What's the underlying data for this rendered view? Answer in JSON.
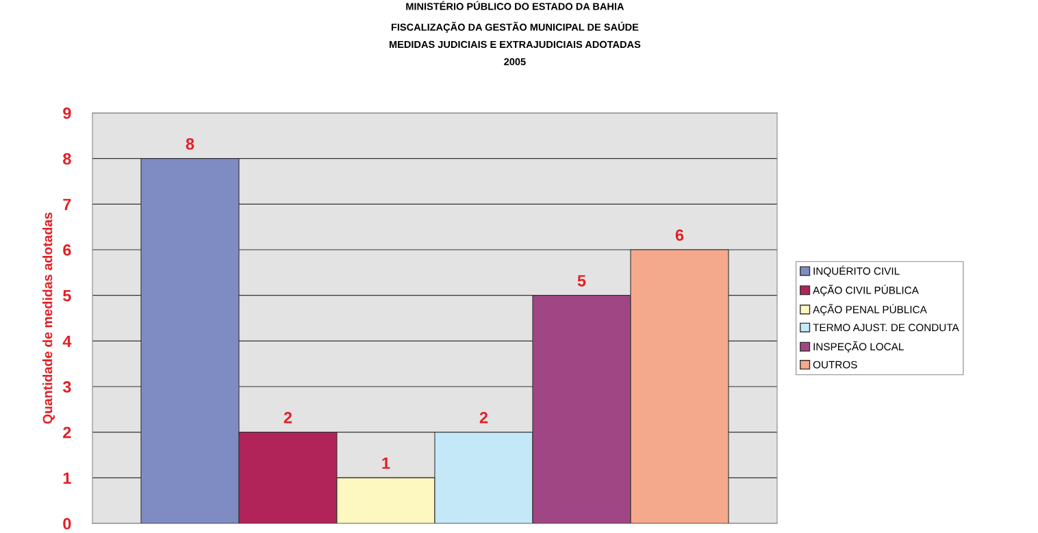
{
  "chart_data": {
    "type": "bar",
    "title": "MINISTÉRIO PÚBLICO DO ESTADO DA BAHIA\nFISCALIZAÇÃO DA GESTÃO MUNICIPAL DE SAÚDE\nMEDIDAS JUDICIAIS E EXTRAJUDICIAIS ADOTADAS\n2005",
    "ylabel": "Quantidade de medidas adotadas",
    "categories": [
      null
    ],
    "series": [
      {
        "name": "INQUÉRITO CIVIL",
        "color": "#7f8cc4",
        "values": [
          8
        ]
      },
      {
        "name": "AÇÃO CIVIL PÚBLICA",
        "color": "#b0245a",
        "values": [
          2
        ]
      },
      {
        "name": "AÇÃO PENAL PÚBLICA",
        "color": "#fdf7c0",
        "values": [
          1
        ]
      },
      {
        "name": "TERMO AJUST. DE CONDUTA",
        "color": "#c5e8f8",
        "values": [
          2
        ]
      },
      {
        "name": "INSPEÇÃO LOCAL",
        "color": "#a14685",
        "values": [
          5
        ]
      },
      {
        "name": "OUTROS",
        "color": "#f5a98c",
        "values": [
          6
        ]
      }
    ],
    "ylim": [
      0,
      9
    ],
    "yticks": [
      0,
      1,
      2,
      3,
      4,
      5,
      6,
      7,
      8,
      9
    ],
    "grid": "y",
    "legend": "right",
    "data_labels": true,
    "tick_labels": "y"
  }
}
